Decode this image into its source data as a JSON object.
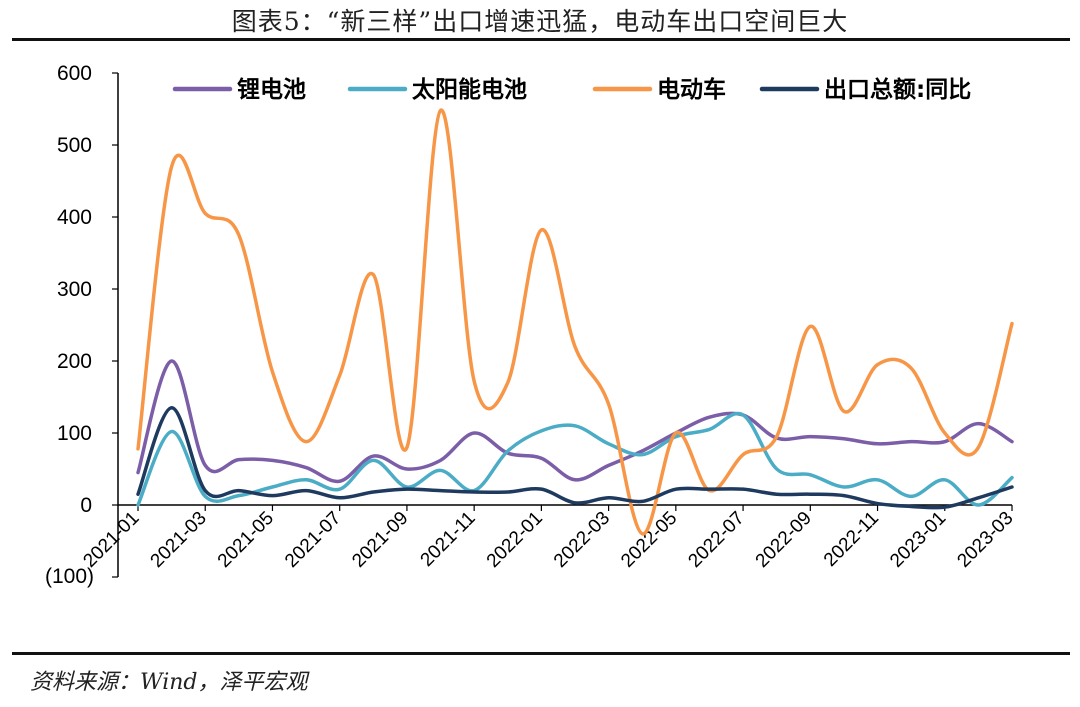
{
  "header": {
    "title": "图表5：“新三样”出口增速迅猛，电动车出口空间巨大"
  },
  "footer": {
    "source": "资料来源：Wind，泽平宏观"
  },
  "chart_data": {
    "type": "line",
    "title": "图表5：“新三样”出口增速迅猛，电动车出口空间巨大",
    "xlabel": "",
    "ylabel": "",
    "ylim": [
      -100,
      600
    ],
    "yticks": [
      600,
      500,
      400,
      300,
      200,
      100,
      0
    ],
    "ytick_labels": [
      "600",
      "500",
      "400",
      "300",
      "200",
      "100",
      "0"
    ],
    "neg_tick_label": "(100)",
    "neg_tick_color": "#d40000",
    "x_tick_labels": [
      "2021-01",
      "2021-03",
      "2021-05",
      "2021-07",
      "2021-09",
      "2021-11",
      "2022-01",
      "2022-03",
      "2022-05",
      "2022-07",
      "2022-09",
      "2022-11",
      "2023-01",
      "2023-03"
    ],
    "x_tick_index": [
      0,
      2,
      4,
      6,
      8,
      10,
      12,
      14,
      16,
      18,
      20,
      22,
      24,
      26
    ],
    "n_points": 27,
    "legend_position": "top",
    "series": [
      {
        "name": "锂电池",
        "color": "#7B5EA7",
        "points": [
          [
            0,
            45
          ],
          [
            1,
            200
          ],
          [
            2,
            55
          ],
          [
            3,
            63
          ],
          [
            4,
            62
          ],
          [
            5,
            52
          ],
          [
            6,
            33
          ],
          [
            7,
            68
          ],
          [
            8,
            50
          ],
          [
            9,
            62
          ],
          [
            10,
            100
          ],
          [
            11,
            72
          ],
          [
            12,
            65
          ],
          [
            13,
            35
          ],
          [
            14,
            55
          ],
          [
            15,
            75
          ],
          [
            16,
            100
          ],
          [
            17,
            122
          ],
          [
            18,
            125
          ],
          [
            19,
            93
          ],
          [
            20,
            95
          ],
          [
            21,
            92
          ],
          [
            22,
            85
          ],
          [
            23,
            88
          ],
          [
            24,
            88
          ],
          [
            25,
            113
          ],
          [
            26,
            88
          ]
        ]
      },
      {
        "name": "太阳能电池",
        "color": "#4BACC6",
        "points": [
          [
            0,
            0
          ],
          [
            1,
            102
          ],
          [
            2,
            12
          ],
          [
            3,
            13
          ],
          [
            4,
            25
          ],
          [
            5,
            35
          ],
          [
            6,
            22
          ],
          [
            7,
            62
          ],
          [
            8,
            25
          ],
          [
            9,
            48
          ],
          [
            10,
            20
          ],
          [
            11,
            75
          ],
          [
            12,
            103
          ],
          [
            13,
            110
          ],
          [
            14,
            85
          ],
          [
            15,
            70
          ],
          [
            16,
            95
          ],
          [
            17,
            105
          ],
          [
            18,
            125
          ],
          [
            19,
            50
          ],
          [
            20,
            42
          ],
          [
            21,
            25
          ],
          [
            22,
            35
          ],
          [
            23,
            12
          ],
          [
            24,
            35
          ],
          [
            25,
            0
          ],
          [
            26,
            38
          ]
        ]
      },
      {
        "name": "电动车",
        "color": "#F79646",
        "points": [
          [
            0,
            78
          ],
          [
            1,
            470
          ],
          [
            2,
            405
          ],
          [
            3,
            375
          ],
          [
            4,
            185
          ],
          [
            5,
            88
          ],
          [
            6,
            180
          ],
          [
            7,
            320
          ],
          [
            8,
            80
          ],
          [
            9,
            548
          ],
          [
            10,
            172
          ],
          [
            11,
            170
          ],
          [
            12,
            382
          ],
          [
            13,
            220
          ],
          [
            14,
            140
          ],
          [
            15,
            -40
          ],
          [
            16,
            100
          ],
          [
            17,
            20
          ],
          [
            18,
            70
          ],
          [
            19,
            95
          ],
          [
            20,
            248
          ],
          [
            21,
            130
          ],
          [
            22,
            195
          ],
          [
            23,
            190
          ],
          [
            24,
            100
          ],
          [
            25,
            80
          ],
          [
            26,
            252
          ]
        ]
      },
      {
        "name": "出口总额:同比",
        "color": "#1F3A5F",
        "points": [
          [
            0,
            15
          ],
          [
            1,
            135
          ],
          [
            2,
            20
          ],
          [
            3,
            20
          ],
          [
            4,
            13
          ],
          [
            5,
            20
          ],
          [
            6,
            10
          ],
          [
            7,
            18
          ],
          [
            8,
            22
          ],
          [
            9,
            20
          ],
          [
            10,
            18
          ],
          [
            11,
            18
          ],
          [
            12,
            22
          ],
          [
            13,
            3
          ],
          [
            14,
            10
          ],
          [
            15,
            5
          ],
          [
            16,
            22
          ],
          [
            17,
            22
          ],
          [
            18,
            22
          ],
          [
            19,
            15
          ],
          [
            20,
            15
          ],
          [
            21,
            13
          ],
          [
            22,
            2
          ],
          [
            23,
            -2
          ],
          [
            24,
            -3
          ],
          [
            25,
            10
          ],
          [
            26,
            25
          ]
        ]
      }
    ]
  }
}
